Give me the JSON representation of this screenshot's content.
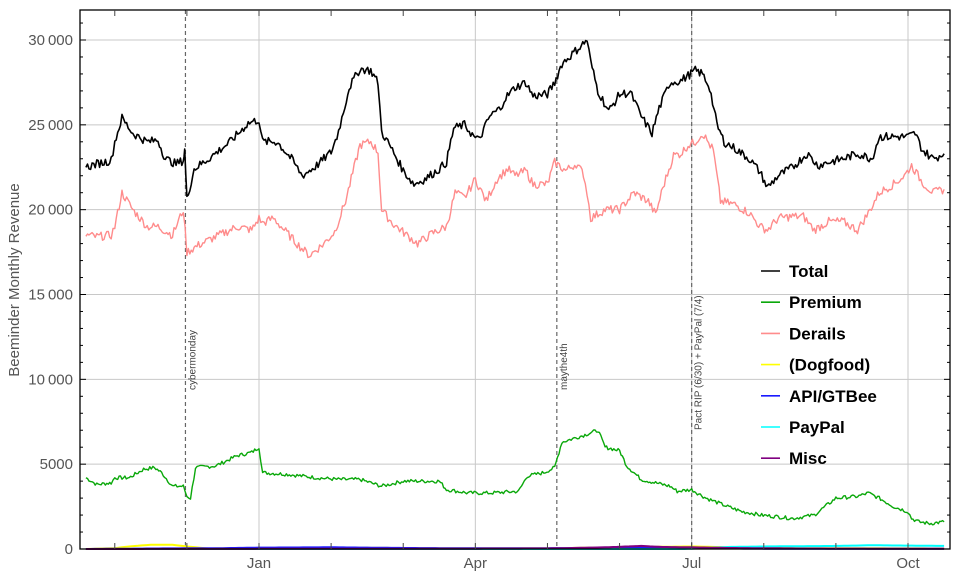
{
  "chart_data": {
    "type": "line",
    "title": "",
    "xlabel": "",
    "ylabel": "Beeminder Monthly Revenue",
    "ylim": [
      0,
      32000
    ],
    "grid": true,
    "legend_position": "inside-right",
    "x_ticks": [
      {
        "label": "Jan",
        "month": 3
      },
      {
        "label": "Apr",
        "month": 6
      },
      {
        "label": "Jul",
        "month": 9
      },
      {
        "label": "Oct",
        "month": 12
      }
    ],
    "y_ticks": [
      {
        "label": "0",
        "value": 0
      },
      {
        "label": "5000",
        "value": 5000
      },
      {
        "label": "10 000",
        "value": 10000
      },
      {
        "label": "15 000",
        "value": 15000
      },
      {
        "label": "20 000",
        "value": 20000
      },
      {
        "label": "25 000",
        "value": 25000
      },
      {
        "label": "30 000",
        "value": 30000
      }
    ],
    "annotations": [
      {
        "label": "cybermonday",
        "month": 1.98
      },
      {
        "label": "maythe4th",
        "month": 7.13
      },
      {
        "label": "Pact RIP (6/30) + PayPal (7/4)",
        "month": 9.0
      }
    ],
    "x_note": "month index: 0 = Oct 1 (prev year), 3 = Jan 1, 6 = Apr 1, 9 = Jul 1, 12 = Oct 1",
    "series": [
      {
        "name": "Total",
        "color": "#000000",
        "points": [
          [
            0.6,
            22500
          ],
          [
            0.75,
            22700
          ],
          [
            0.95,
            22900
          ],
          [
            1.0,
            24000
          ],
          [
            1.1,
            25400
          ],
          [
            1.25,
            24500
          ],
          [
            1.45,
            24000
          ],
          [
            1.6,
            24100
          ],
          [
            1.7,
            23000
          ],
          [
            1.85,
            22700
          ],
          [
            1.95,
            22900
          ],
          [
            1.97,
            23500
          ],
          [
            2.0,
            20600
          ],
          [
            2.1,
            22400
          ],
          [
            2.3,
            23000
          ],
          [
            2.6,
            24000
          ],
          [
            2.85,
            25100
          ],
          [
            3.0,
            25300
          ],
          [
            3.05,
            24000
          ],
          [
            3.25,
            24000
          ],
          [
            3.45,
            23000
          ],
          [
            3.6,
            22000
          ],
          [
            3.8,
            22600
          ],
          [
            4.0,
            23400
          ],
          [
            4.08,
            24300
          ],
          [
            4.15,
            25400
          ],
          [
            4.25,
            27200
          ],
          [
            4.4,
            28300
          ],
          [
            4.55,
            28200
          ],
          [
            4.65,
            27500
          ],
          [
            4.7,
            24600
          ],
          [
            4.85,
            23500
          ],
          [
            5.0,
            22300
          ],
          [
            5.15,
            21500
          ],
          [
            5.3,
            21800
          ],
          [
            5.5,
            22400
          ],
          [
            5.6,
            22800
          ],
          [
            5.7,
            24800
          ],
          [
            5.85,
            25000
          ],
          [
            6.0,
            24200
          ],
          [
            6.05,
            24100
          ],
          [
            6.2,
            25500
          ],
          [
            6.35,
            26000
          ],
          [
            6.4,
            26500
          ],
          [
            6.55,
            27200
          ],
          [
            6.7,
            27500
          ],
          [
            6.8,
            26700
          ],
          [
            7.0,
            26800
          ],
          [
            7.1,
            27500
          ],
          [
            7.2,
            28600
          ],
          [
            7.3,
            29000
          ],
          [
            7.45,
            29600
          ],
          [
            7.55,
            30000
          ],
          [
            7.6,
            28700
          ],
          [
            7.7,
            27000
          ],
          [
            7.85,
            25800
          ],
          [
            8.0,
            26800
          ],
          [
            8.15,
            26900
          ],
          [
            8.3,
            25500
          ],
          [
            8.45,
            24500
          ],
          [
            8.55,
            26000
          ],
          [
            8.7,
            27500
          ],
          [
            8.85,
            27600
          ],
          [
            8.95,
            27900
          ],
          [
            9.05,
            28200
          ],
          [
            9.15,
            28000
          ],
          [
            9.25,
            27200
          ],
          [
            9.35,
            25000
          ],
          [
            9.45,
            24000
          ],
          [
            9.6,
            23600
          ],
          [
            9.8,
            23000
          ],
          [
            9.95,
            22200
          ],
          [
            10.05,
            21300
          ],
          [
            10.2,
            22000
          ],
          [
            10.4,
            22500
          ],
          [
            10.6,
            23300
          ],
          [
            10.75,
            22600
          ],
          [
            10.9,
            22800
          ],
          [
            11.1,
            23000
          ],
          [
            11.3,
            23300
          ],
          [
            11.5,
            23000
          ],
          [
            11.6,
            24300
          ],
          [
            11.8,
            24300
          ],
          [
            12.0,
            24300
          ],
          [
            12.1,
            24500
          ],
          [
            12.2,
            23500
          ],
          [
            12.35,
            23000
          ],
          [
            12.5,
            23300
          ]
        ]
      },
      {
        "name": "Premium",
        "color": "#0aa80a",
        "points": [
          [
            0.6,
            4200
          ],
          [
            0.75,
            3800
          ],
          [
            0.95,
            3900
          ],
          [
            1.0,
            4200
          ],
          [
            1.2,
            4200
          ],
          [
            1.4,
            4700
          ],
          [
            1.55,
            4800
          ],
          [
            1.65,
            4500
          ],
          [
            1.8,
            3700
          ],
          [
            1.95,
            3700
          ],
          [
            2.0,
            3100
          ],
          [
            2.05,
            3000
          ],
          [
            2.12,
            4800
          ],
          [
            2.4,
            4900
          ],
          [
            2.7,
            5500
          ],
          [
            2.9,
            5700
          ],
          [
            3.0,
            6000
          ],
          [
            3.05,
            4500
          ],
          [
            3.4,
            4400
          ],
          [
            3.8,
            4200
          ],
          [
            4.1,
            4100
          ],
          [
            4.4,
            4100
          ],
          [
            4.7,
            3700
          ],
          [
            5.0,
            4000
          ],
          [
            5.3,
            4000
          ],
          [
            5.5,
            4000
          ],
          [
            5.6,
            3500
          ],
          [
            5.9,
            3300
          ],
          [
            6.2,
            3300
          ],
          [
            6.6,
            3400
          ],
          [
            6.72,
            4300
          ],
          [
            6.95,
            4500
          ],
          [
            7.1,
            4800
          ],
          [
            7.2,
            6300
          ],
          [
            7.5,
            6700
          ],
          [
            7.7,
            7000
          ],
          [
            7.8,
            6000
          ],
          [
            8.0,
            5800
          ],
          [
            8.1,
            4900
          ],
          [
            8.3,
            4100
          ],
          [
            8.5,
            3900
          ],
          [
            8.7,
            3700
          ],
          [
            8.8,
            3400
          ],
          [
            9.0,
            3500
          ],
          [
            9.2,
            3000
          ],
          [
            9.5,
            2500
          ],
          [
            9.7,
            2200
          ],
          [
            9.85,
            2100
          ],
          [
            9.95,
            2000
          ],
          [
            10.2,
            1900
          ],
          [
            10.4,
            1800
          ],
          [
            10.7,
            2000
          ],
          [
            11.0,
            3000
          ],
          [
            11.3,
            3100
          ],
          [
            11.45,
            3300
          ],
          [
            11.6,
            3000
          ],
          [
            11.8,
            2500
          ],
          [
            12.0,
            2200
          ],
          [
            12.05,
            1800
          ],
          [
            12.15,
            1600
          ],
          [
            12.3,
            1500
          ],
          [
            12.5,
            1600
          ]
        ]
      },
      {
        "name": "Derails",
        "color": "#ff8c8c",
        "points": [
          [
            0.6,
            18500
          ],
          [
            0.75,
            18400
          ],
          [
            0.95,
            18500
          ],
          [
            1.0,
            19000
          ],
          [
            1.1,
            21000
          ],
          [
            1.25,
            20000
          ],
          [
            1.45,
            19000
          ],
          [
            1.6,
            19000
          ],
          [
            1.8,
            18500
          ],
          [
            1.95,
            20000
          ],
          [
            2.0,
            17500
          ],
          [
            2.2,
            18000
          ],
          [
            2.5,
            18600
          ],
          [
            2.7,
            19000
          ],
          [
            2.9,
            18800
          ],
          [
            3.0,
            19500
          ],
          [
            3.05,
            19200
          ],
          [
            3.2,
            19500
          ],
          [
            3.35,
            18800
          ],
          [
            3.55,
            17900
          ],
          [
            3.7,
            17300
          ],
          [
            3.9,
            18000
          ],
          [
            4.05,
            18700
          ],
          [
            4.2,
            20500
          ],
          [
            4.4,
            23800
          ],
          [
            4.55,
            24000
          ],
          [
            4.65,
            23400
          ],
          [
            4.7,
            20000
          ],
          [
            4.85,
            19200
          ],
          [
            5.05,
            18500
          ],
          [
            5.2,
            18000
          ],
          [
            5.4,
            18600
          ],
          [
            5.6,
            19000
          ],
          [
            5.72,
            21000
          ],
          [
            5.85,
            20700
          ],
          [
            6.0,
            21800
          ],
          [
            6.15,
            20500
          ],
          [
            6.3,
            21800
          ],
          [
            6.45,
            22400
          ],
          [
            6.55,
            22000
          ],
          [
            6.7,
            22300
          ],
          [
            6.8,
            21500
          ],
          [
            7.0,
            21500
          ],
          [
            7.1,
            22800
          ],
          [
            7.25,
            22300
          ],
          [
            7.4,
            22700
          ],
          [
            7.5,
            22100
          ],
          [
            7.55,
            21000
          ],
          [
            7.6,
            19500
          ],
          [
            7.8,
            20000
          ],
          [
            8.0,
            20000
          ],
          [
            8.2,
            21000
          ],
          [
            8.4,
            20500
          ],
          [
            8.5,
            19700
          ],
          [
            8.6,
            21300
          ],
          [
            8.75,
            23200
          ],
          [
            8.85,
            23300
          ],
          [
            8.95,
            23800
          ],
          [
            9.05,
            24000
          ],
          [
            9.15,
            24500
          ],
          [
            9.3,
            23500
          ],
          [
            9.4,
            20500
          ],
          [
            9.6,
            20300
          ],
          [
            9.8,
            19800
          ],
          [
            9.95,
            19000
          ],
          [
            10.05,
            18800
          ],
          [
            10.2,
            19500
          ],
          [
            10.4,
            19600
          ],
          [
            10.55,
            19600
          ],
          [
            10.7,
            18800
          ],
          [
            10.9,
            19300
          ],
          [
            11.1,
            19300
          ],
          [
            11.3,
            18800
          ],
          [
            11.45,
            19800
          ],
          [
            11.6,
            21000
          ],
          [
            11.8,
            21500
          ],
          [
            11.95,
            22000
          ],
          [
            12.05,
            22600
          ],
          [
            12.2,
            21600
          ],
          [
            12.35,
            21000
          ],
          [
            12.5,
            21200
          ]
        ]
      },
      {
        "name": "(Dogfood)",
        "color": "#ffff00",
        "points": [
          [
            0.6,
            0
          ],
          [
            1.0,
            50
          ],
          [
            1.2,
            150
          ],
          [
            1.5,
            250
          ],
          [
            1.8,
            250
          ],
          [
            2.0,
            150
          ],
          [
            2.3,
            30
          ],
          [
            3.0,
            50
          ],
          [
            4.0,
            70
          ],
          [
            5.0,
            60
          ],
          [
            6.0,
            40
          ],
          [
            7.0,
            40
          ],
          [
            8.0,
            100
          ],
          [
            9.0,
            150
          ],
          [
            9.5,
            100
          ],
          [
            10.5,
            50
          ],
          [
            11.5,
            40
          ],
          [
            12.5,
            30
          ]
        ]
      },
      {
        "name": "API/GTBee",
        "color": "#1a1aff",
        "points": [
          [
            0.6,
            0
          ],
          [
            1.5,
            30
          ],
          [
            2.5,
            50
          ],
          [
            3.0,
            80
          ],
          [
            4.0,
            100
          ],
          [
            5.0,
            60
          ],
          [
            6.0,
            40
          ],
          [
            7.0,
            50
          ],
          [
            8.0,
            70
          ],
          [
            9.0,
            40
          ],
          [
            10.0,
            20
          ],
          [
            11.0,
            10
          ],
          [
            12.5,
            10
          ]
        ]
      },
      {
        "name": "PayPal",
        "color": "#00ffff",
        "points": [
          [
            0.6,
            0
          ],
          [
            8.9,
            0
          ],
          [
            9.1,
            40
          ],
          [
            9.5,
            120
          ],
          [
            10.0,
            150
          ],
          [
            11.0,
            180
          ],
          [
            11.5,
            220
          ],
          [
            12.0,
            200
          ],
          [
            12.5,
            180
          ]
        ]
      },
      {
        "name": "Misc",
        "color": "#800080",
        "points": [
          [
            0.6,
            0
          ],
          [
            6.0,
            20
          ],
          [
            7.0,
            30
          ],
          [
            7.8,
            100
          ],
          [
            8.3,
            180
          ],
          [
            8.6,
            120
          ],
          [
            9.0,
            100
          ],
          [
            9.5,
            60
          ],
          [
            10.5,
            30
          ],
          [
            12.5,
            10
          ]
        ]
      }
    ]
  },
  "legend": {
    "items": [
      {
        "label": "Total",
        "color": "#000000"
      },
      {
        "label": "Premium",
        "color": "#0aa80a"
      },
      {
        "label": "Derails",
        "color": "#ff8c8c"
      },
      {
        "label": "(Dogfood)",
        "color": "#ffff00"
      },
      {
        "label": "API/GTBee",
        "color": "#1a1aff"
      },
      {
        "label": "PayPal",
        "color": "#00ffff"
      },
      {
        "label": "Misc",
        "color": "#800080"
      }
    ]
  }
}
